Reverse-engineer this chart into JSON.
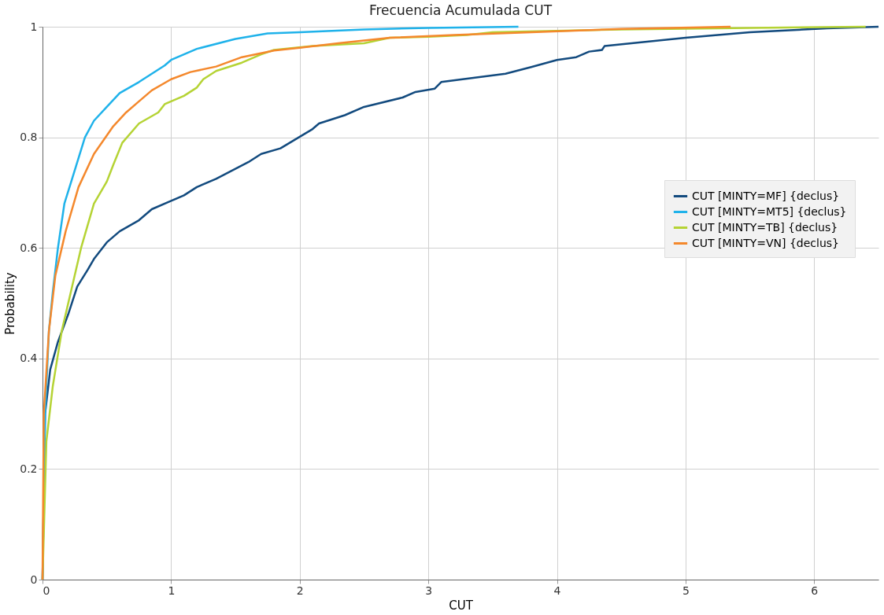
{
  "chart_data": {
    "type": "line",
    "title": "Frecuencia Acumulada CUT",
    "xlabel": "CUT",
    "ylabel": "Probability",
    "xlim": [
      0,
      6.5
    ],
    "xticks": [
      0,
      1,
      2,
      3,
      4,
      5,
      6
    ],
    "ylim": [
      0,
      1
    ],
    "yticks": [
      0,
      0.2,
      0.4,
      0.6,
      0.8,
      1
    ],
    "grid": true,
    "legend": "right",
    "marker": "none",
    "line_style": "solid",
    "series": [
      {
        "name": "CUT [MINTY=MF] {declus}",
        "color": "#124a7e",
        "x": [
          0,
          0.02,
          0.06,
          0.12,
          0.2,
          0.27,
          0.35,
          0.4,
          0.5,
          0.6,
          0.75,
          0.85,
          1.0,
          1.1,
          1.2,
          1.35,
          1.6,
          1.7,
          1.85,
          2.1,
          2.15,
          2.35,
          2.5,
          2.8,
          2.9,
          3.05,
          3.1,
          3.6,
          3.8,
          4.0,
          4.15,
          4.25,
          4.35,
          4.37,
          5.0,
          5.5,
          6.1,
          6.5
        ],
        "values": [
          0,
          0.3,
          0.38,
          0.43,
          0.48,
          0.53,
          0.56,
          0.58,
          0.61,
          0.63,
          0.65,
          0.67,
          0.685,
          0.695,
          0.71,
          0.725,
          0.755,
          0.77,
          0.78,
          0.815,
          0.825,
          0.84,
          0.855,
          0.872,
          0.882,
          0.888,
          0.9,
          0.915,
          0.927,
          0.94,
          0.945,
          0.955,
          0.958,
          0.965,
          0.98,
          0.99,
          0.997,
          1.0
        ]
      },
      {
        "name": "CUT [MINTY=MT5] {declus}",
        "color": "#1fb2ea",
        "x": [
          0,
          0.02,
          0.05,
          0.08,
          0.12,
          0.17,
          0.25,
          0.33,
          0.4,
          0.5,
          0.6,
          0.75,
          0.85,
          0.95,
          1.0,
          1.2,
          1.5,
          1.75,
          2.0,
          2.5,
          3.0,
          3.7
        ],
        "values": [
          0,
          0.3,
          0.45,
          0.52,
          0.6,
          0.68,
          0.74,
          0.8,
          0.83,
          0.855,
          0.88,
          0.9,
          0.915,
          0.93,
          0.94,
          0.96,
          0.978,
          0.988,
          0.99,
          0.995,
          0.998,
          1.0
        ]
      },
      {
        "name": "CUT [MINTY=TB] {declus}",
        "color": "#b5d334",
        "x": [
          0,
          0.03,
          0.08,
          0.15,
          0.22,
          0.3,
          0.4,
          0.5,
          0.55,
          0.62,
          0.75,
          0.9,
          0.95,
          1.1,
          1.2,
          1.25,
          1.35,
          1.55,
          1.7,
          1.8,
          2.1,
          2.5,
          2.7,
          3.0,
          3.3,
          3.5,
          4.5,
          5.5,
          6.4
        ],
        "values": [
          0,
          0.25,
          0.35,
          0.45,
          0.52,
          0.6,
          0.68,
          0.72,
          0.75,
          0.79,
          0.825,
          0.845,
          0.86,
          0.875,
          0.89,
          0.905,
          0.92,
          0.935,
          0.95,
          0.958,
          0.965,
          0.97,
          0.98,
          0.982,
          0.985,
          0.99,
          0.995,
          0.998,
          1.0
        ]
      },
      {
        "name": "CUT [MINTY=VN] {declus}",
        "color": "#f4882c",
        "x": [
          0,
          0.01,
          0.05,
          0.1,
          0.18,
          0.28,
          0.4,
          0.55,
          0.65,
          0.75,
          0.85,
          1.0,
          1.15,
          1.35,
          1.55,
          1.8,
          2.0,
          2.3,
          2.7,
          3.2,
          3.8,
          4.5,
          5.35
        ],
        "values": [
          0,
          0.3,
          0.45,
          0.55,
          0.63,
          0.71,
          0.77,
          0.82,
          0.845,
          0.865,
          0.885,
          0.905,
          0.918,
          0.928,
          0.945,
          0.957,
          0.962,
          0.97,
          0.98,
          0.985,
          0.99,
          0.996,
          1.0
        ]
      }
    ]
  }
}
